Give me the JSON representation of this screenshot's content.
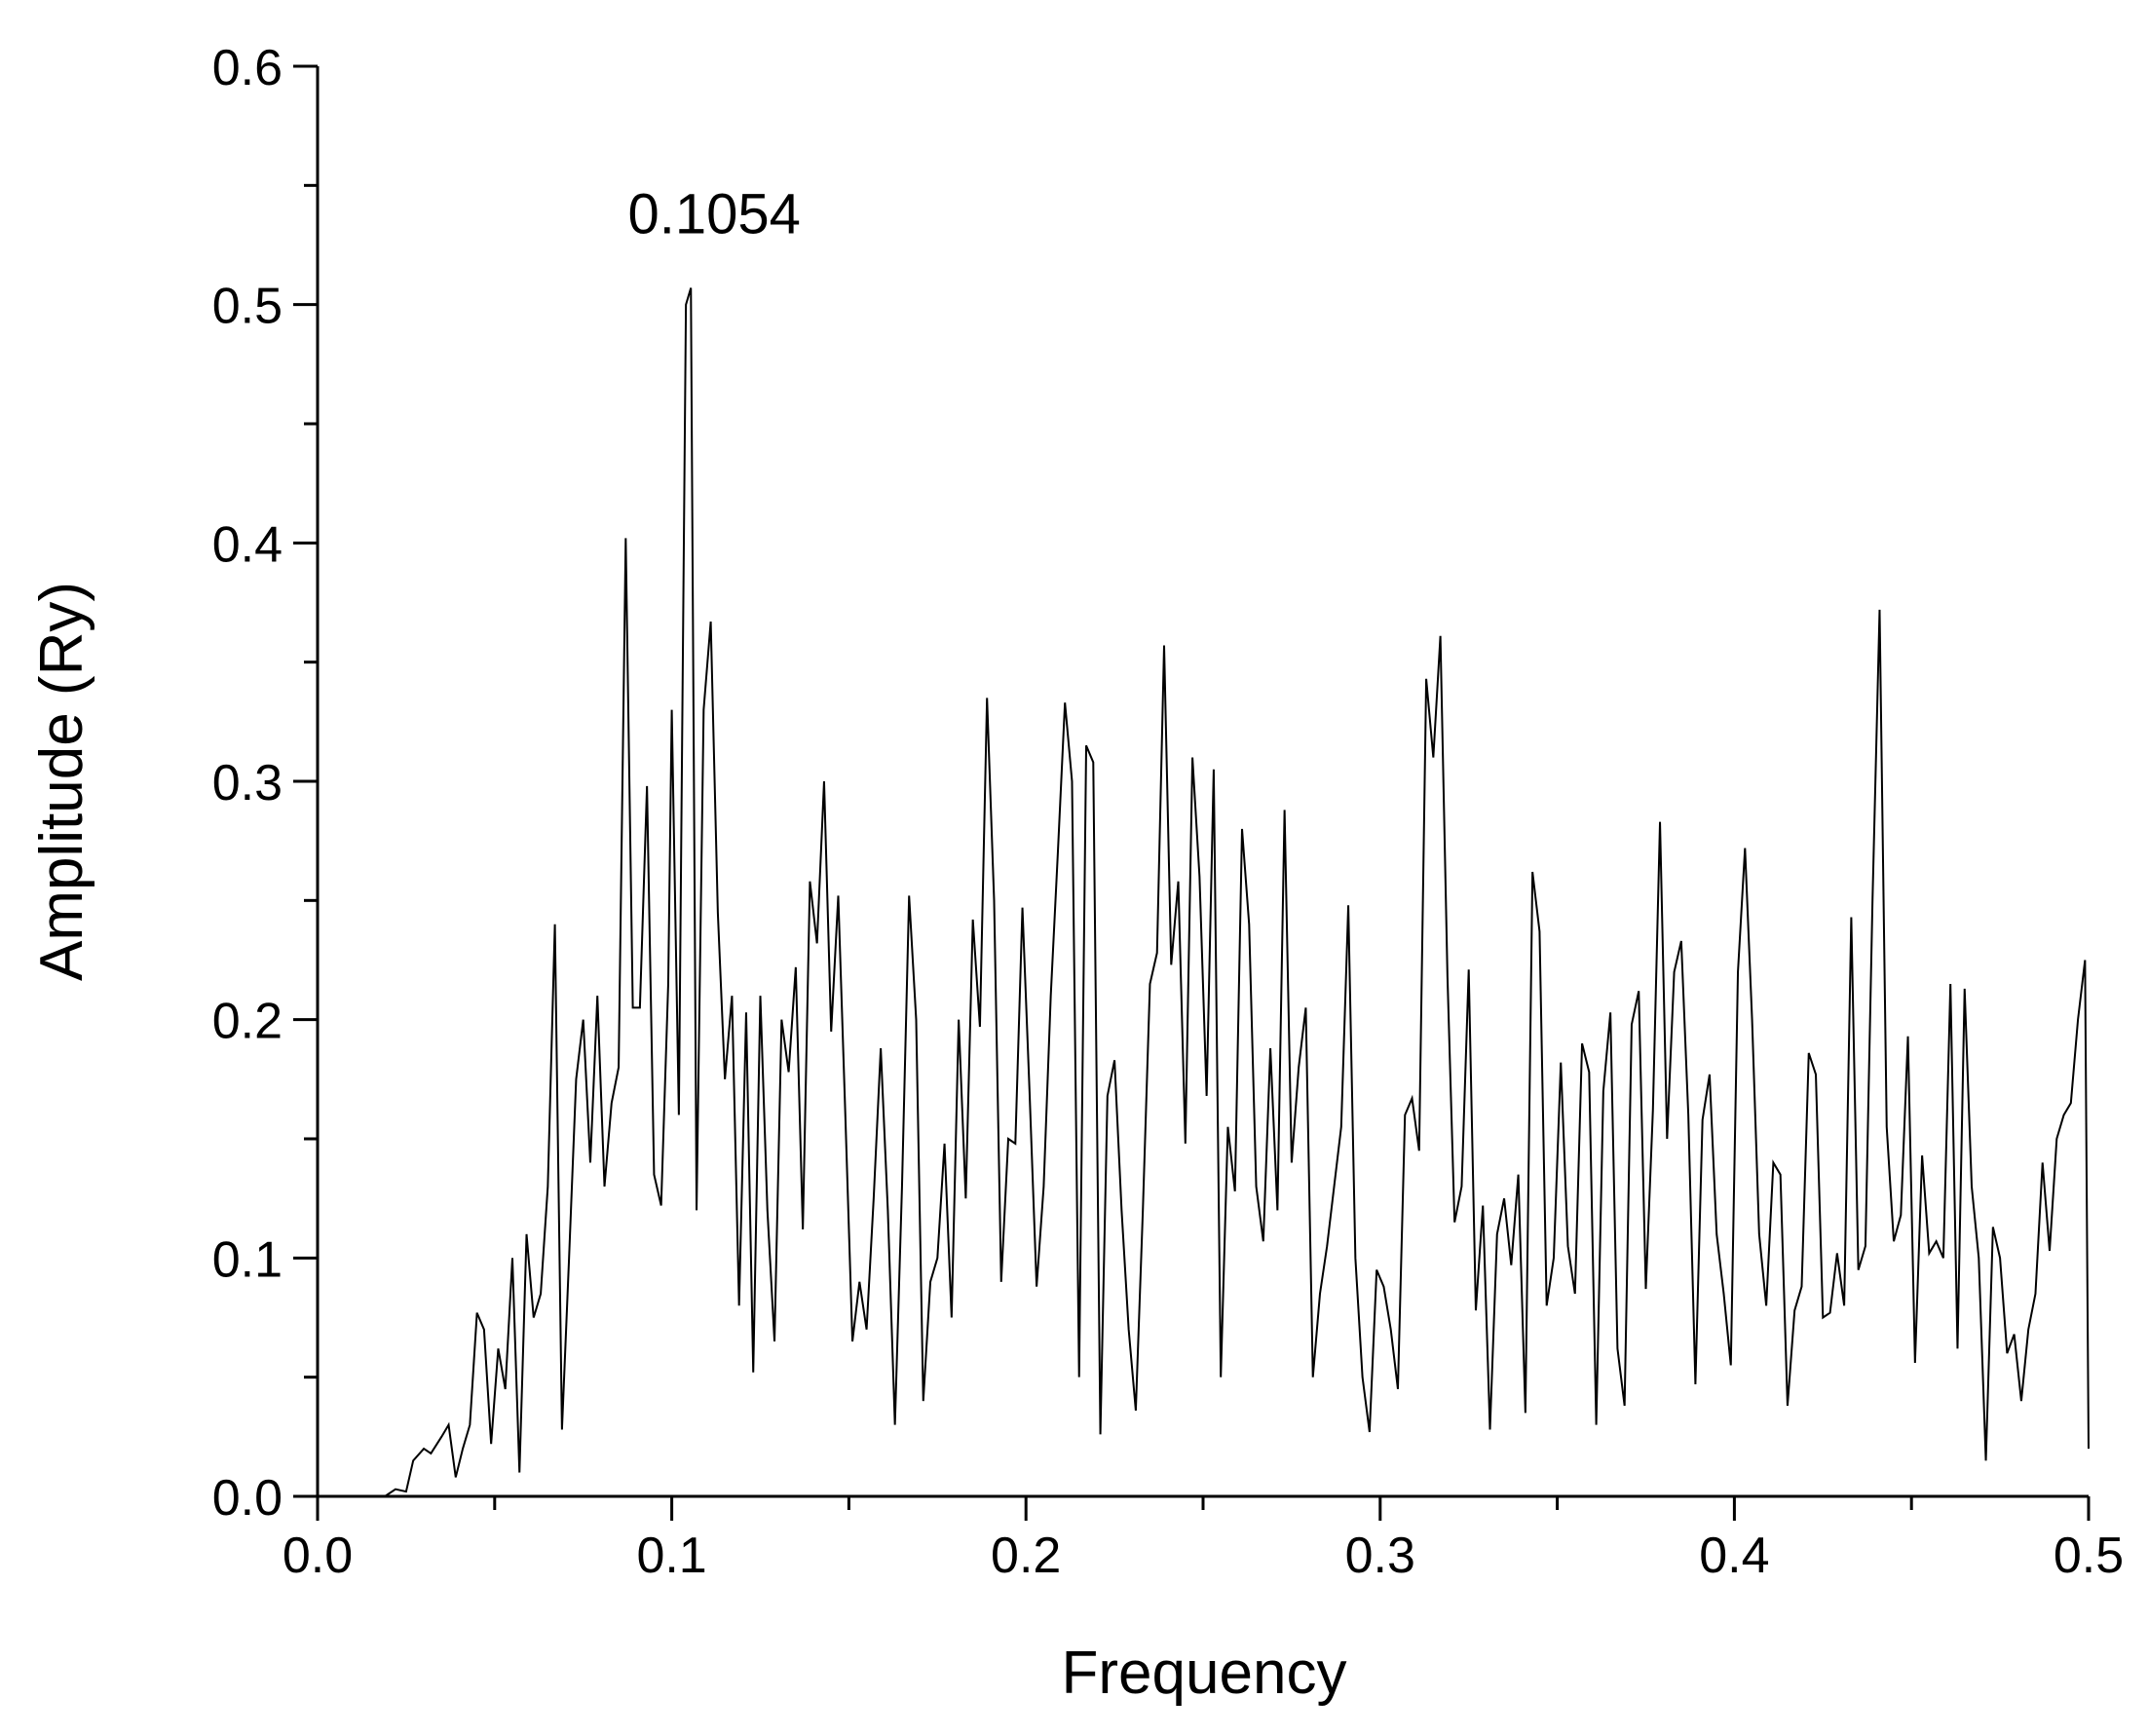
{
  "chart_data": {
    "type": "line",
    "x_label": "Frequency",
    "y_label": "Amplitude (Ry)",
    "annotation": "0.1054",
    "xlim": [
      0,
      0.5
    ],
    "ylim": [
      0,
      0.6
    ],
    "xticks": [
      {
        "value": 0,
        "label": "0.0"
      },
      0.1,
      0.2,
      0.3,
      0.4,
      0.5
    ],
    "yticks": [
      {
        "value": 0,
        "label": "0.0"
      },
      0.1,
      0.2,
      0.3,
      0.4,
      0.5,
      0.6
    ],
    "grid": false,
    "x": [
      0.019,
      0.022,
      0.025,
      0.027,
      0.03,
      0.032,
      0.035,
      0.037,
      0.039,
      0.041,
      0.043,
      0.045,
      0.047,
      0.049,
      0.051,
      0.053,
      0.055,
      0.057,
      0.059,
      0.061,
      0.063,
      0.065,
      0.067,
      0.069,
      0.071,
      0.073,
      0.075,
      0.077,
      0.079,
      0.081,
      0.083,
      0.085,
      0.087,
      0.089,
      0.091,
      0.093,
      0.095,
      0.097,
      0.099,
      0.1,
      0.102,
      0.104,
      0.1054,
      0.107,
      0.109,
      0.111,
      0.113,
      0.115,
      0.117,
      0.119,
      0.121,
      0.123,
      0.125,
      0.127,
      0.129,
      0.131,
      0.133,
      0.135,
      0.137,
      0.139,
      0.141,
      0.143,
      0.145,
      0.147,
      0.149,
      0.151,
      0.153,
      0.155,
      0.157,
      0.159,
      0.161,
      0.163,
      0.165,
      0.167,
      0.169,
      0.171,
      0.173,
      0.175,
      0.177,
      0.179,
      0.181,
      0.183,
      0.185,
      0.187,
      0.189,
      0.191,
      0.193,
      0.195,
      0.197,
      0.199,
      0.201,
      0.203,
      0.205,
      0.207,
      0.209,
      0.211,
      0.213,
      0.215,
      0.217,
      0.219,
      0.221,
      0.223,
      0.225,
      0.227,
      0.229,
      0.231,
      0.233,
      0.235,
      0.237,
      0.239,
      0.241,
      0.243,
      0.245,
      0.247,
      0.249,
      0.251,
      0.253,
      0.255,
      0.257,
      0.259,
      0.261,
      0.263,
      0.265,
      0.267,
      0.269,
      0.271,
      0.273,
      0.275,
      0.277,
      0.279,
      0.281,
      0.283,
      0.285,
      0.287,
      0.289,
      0.291,
      0.293,
      0.295,
      0.297,
      0.299,
      0.301,
      0.303,
      0.305,
      0.307,
      0.309,
      0.311,
      0.313,
      0.315,
      0.317,
      0.319,
      0.321,
      0.323,
      0.325,
      0.327,
      0.329,
      0.331,
      0.333,
      0.335,
      0.337,
      0.339,
      0.341,
      0.343,
      0.345,
      0.347,
      0.349,
      0.351,
      0.353,
      0.355,
      0.357,
      0.359,
      0.361,
      0.363,
      0.365,
      0.367,
      0.369,
      0.371,
      0.373,
      0.375,
      0.377,
      0.379,
      0.381,
      0.383,
      0.385,
      0.387,
      0.389,
      0.391,
      0.393,
      0.395,
      0.397,
      0.399,
      0.401,
      0.403,
      0.405,
      0.407,
      0.409,
      0.411,
      0.413,
      0.415,
      0.417,
      0.419,
      0.421,
      0.423,
      0.425,
      0.427,
      0.429,
      0.431,
      0.433,
      0.435,
      0.437,
      0.439,
      0.441,
      0.443,
      0.445,
      0.447,
      0.449,
      0.451,
      0.453,
      0.455,
      0.457,
      0.459,
      0.461,
      0.463,
      0.465,
      0.467,
      0.469,
      0.471,
      0.473,
      0.475,
      0.477,
      0.479,
      0.481,
      0.483,
      0.485,
      0.487,
      0.489,
      0.491,
      0.493,
      0.495,
      0.497,
      0.499,
      0.5
    ],
    "series": [
      {
        "color": "#000000",
        "values": [
          0,
          0.003,
          0.002,
          0.015,
          0.02,
          0.018,
          0.025,
          0.03,
          0.008,
          0.02,
          0.03,
          0.077,
          0.07,
          0.022,
          0.062,
          0.045,
          0.1,
          0.01,
          0.11,
          0.075,
          0.085,
          0.13,
          0.24,
          0.028,
          0.1,
          0.175,
          0.2,
          0.14,
          0.21,
          0.13,
          0.165,
          0.18,
          0.402,
          0.205,
          0.205,
          0.298,
          0.135,
          0.122,
          0.215,
          0.33,
          0.16,
          0.5,
          0.507,
          0.12,
          0.33,
          0.367,
          0.245,
          0.175,
          0.21,
          0.08,
          0.203,
          0.052,
          0.21,
          0.12,
          0.065,
          0.2,
          0.178,
          0.222,
          0.112,
          0.258,
          0.232,
          0.3,
          0.195,
          0.252,
          0.16,
          0.065,
          0.09,
          0.07,
          0.125,
          0.188,
          0.12,
          0.03,
          0.13,
          0.252,
          0.2,
          0.04,
          0.09,
          0.1,
          0.148,
          0.075,
          0.2,
          0.125,
          0.242,
          0.197,
          0.335,
          0.25,
          0.09,
          0.15,
          0.148,
          0.247,
          0.17,
          0.088,
          0.13,
          0.21,
          0.27,
          0.333,
          0.3,
          0.05,
          0.315,
          0.308,
          0.026,
          0.168,
          0.183,
          0.12,
          0.07,
          0.036,
          0.12,
          0.215,
          0.228,
          0.357,
          0.223,
          0.258,
          0.148,
          0.31,
          0.26,
          0.168,
          0.305,
          0.05,
          0.155,
          0.128,
          0.28,
          0.24,
          0.13,
          0.107,
          0.188,
          0.12,
          0.288,
          0.14,
          0.18,
          0.205,
          0.05,
          0.085,
          0.105,
          0.13,
          0.155,
          0.248,
          0.1,
          0.05,
          0.027,
          0.095,
          0.088,
          0.07,
          0.045,
          0.16,
          0.167,
          0.145,
          0.343,
          0.31,
          0.361,
          0.218,
          0.115,
          0.13,
          0.221,
          0.078,
          0.122,
          0.028,
          0.11,
          0.125,
          0.097,
          0.135,
          0.035,
          0.262,
          0.237,
          0.08,
          0.1,
          0.182,
          0.105,
          0.085,
          0.19,
          0.178,
          0.03,
          0.17,
          0.203,
          0.062,
          0.038,
          0.198,
          0.212,
          0.087,
          0.162,
          0.283,
          0.15,
          0.22,
          0.233,
          0.16,
          0.047,
          0.158,
          0.177,
          0.11,
          0.085,
          0.055,
          0.22,
          0.272,
          0.2,
          0.11,
          0.08,
          0.14,
          0.135,
          0.038,
          0.078,
          0.088,
          0.186,
          0.177,
          0.075,
          0.077,
          0.102,
          0.08,
          0.243,
          0.095,
          0.105,
          0.25,
          0.372,
          0.155,
          0.107,
          0.118,
          0.193,
          0.056,
          0.143,
          0.102,
          0.107,
          0.1,
          0.215,
          0.062,
          0.213,
          0.13,
          0.1,
          0.015,
          0.113,
          0.1,
          0.06,
          0.068,
          0.04,
          0.07,
          0.085,
          0.14,
          0.103,
          0.15,
          0.16,
          0.165,
          0.2,
          0.225,
          0.02
        ]
      }
    ]
  }
}
